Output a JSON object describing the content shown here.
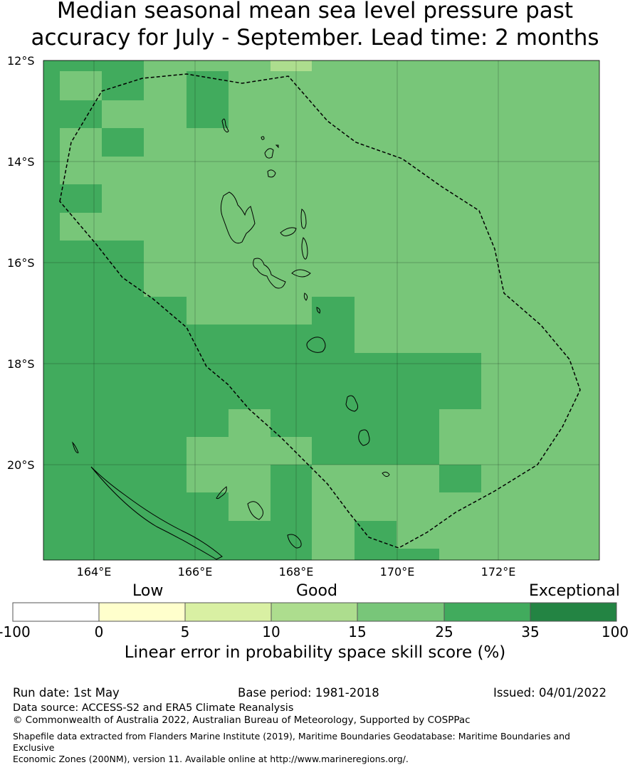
{
  "title_line1": "Median seasonal mean sea level pressure past",
  "title_line2": "accuracy for July - September. Lead time: 2 months",
  "map": {
    "lat_labels": [
      "12°S",
      "14°S",
      "16°S",
      "18°S",
      "20°S"
    ],
    "lon_labels": [
      "164°E",
      "166°E",
      "168°E",
      "170°E",
      "172°E"
    ],
    "lon_range": [
      163,
      174
    ],
    "lat_range": [
      -12,
      -21.9
    ]
  },
  "legend": {
    "category_low": "Low",
    "category_good": "Good",
    "category_exceptional": "Exceptional",
    "ticks": [
      "-100",
      "0",
      "5",
      "10",
      "15",
      "25",
      "35",
      "100"
    ],
    "colors": [
      "#ffffff",
      "#ffffcc",
      "#d9f0a3",
      "#addd8e",
      "#78c679",
      "#41ab5d",
      "#238443"
    ],
    "title": "Linear error in probability space skill score (%)"
  },
  "footer": {
    "run_date": "Run date: 1st May",
    "base_period": "Base period: 1981-2018",
    "issued": "Issued: 04/01/2022",
    "data_source": "Data source: ACCESS-S2 and ERA5 Climate Reanalysis",
    "copyright": "© Commonwealth of Australia 2022, Australian Bureau of Meteorology, Supported by COSPPac",
    "shapefile_note_1": "Shapefile data extracted from Flanders Marine Institute (2019), Maritime Boundaries Geodatabase: Maritime Boundaries and Exclusive",
    "shapefile_note_2": "Economic Zones (200NM), version 11. Available online at http://www.marineregions.org/."
  }
}
